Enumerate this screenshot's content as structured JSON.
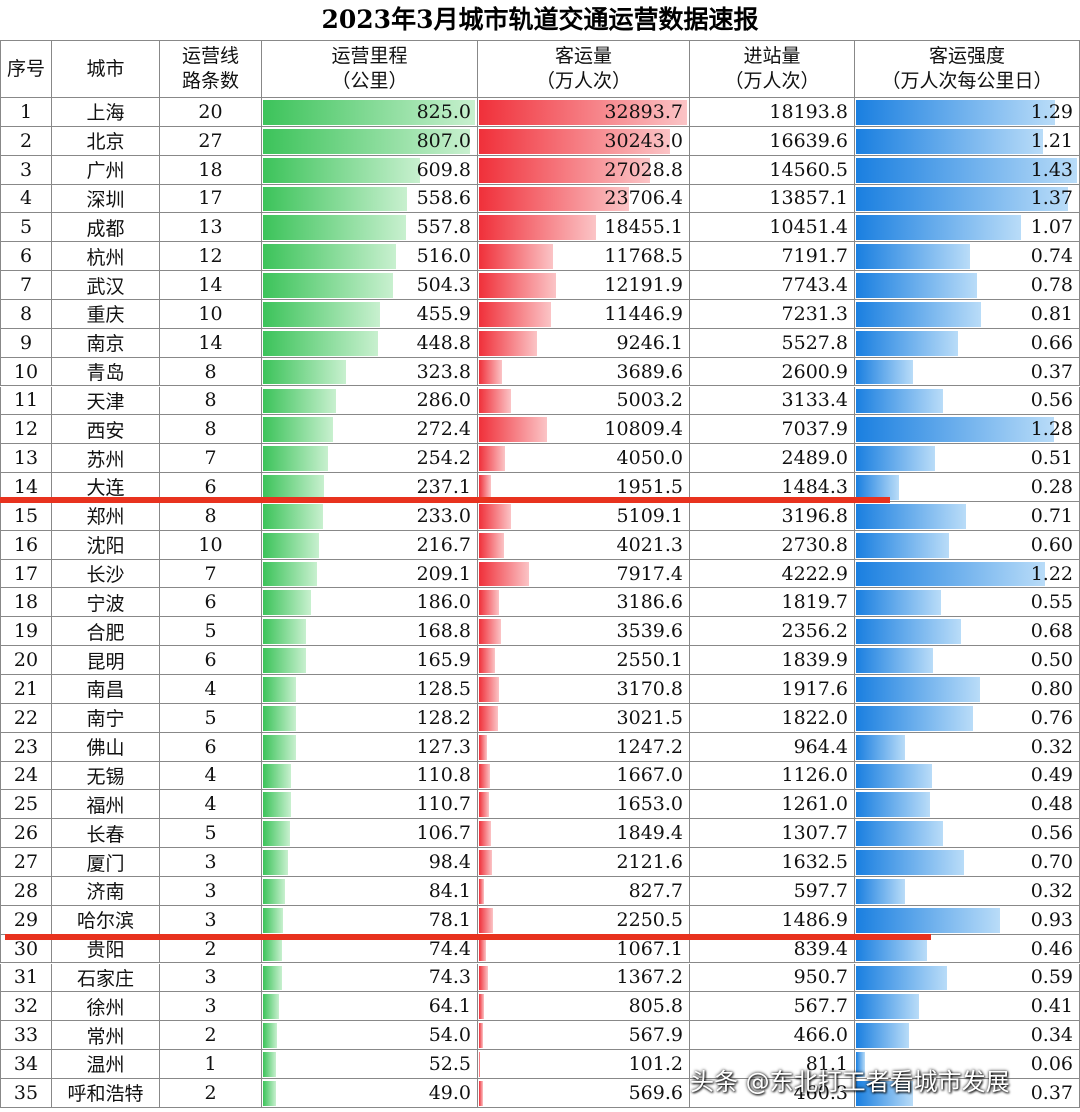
{
  "title": "2023年3月城市轨道交通运营数据速报",
  "table": {
    "header": [
      [
        "序号"
      ],
      [
        "城市"
      ],
      [
        "运营线",
        "路条数"
      ],
      [
        "运营里程",
        "（公里）"
      ],
      [
        "客运量",
        "（万人次）"
      ],
      [
        "进站量",
        "（万人次）"
      ],
      [
        "客运强度",
        "（万人次每公里日）"
      ]
    ],
    "rows": [
      [
        "1",
        "上海",
        "20",
        "825.0",
        "32893.7",
        "18193.8",
        "1.29"
      ],
      [
        "2",
        "北京",
        "27",
        "807.0",
        "30243.0",
        "16639.6",
        "1.21"
      ],
      [
        "3",
        "广州",
        "18",
        "609.8",
        "27028.8",
        "14560.5",
        "1.43"
      ],
      [
        "4",
        "深圳",
        "17",
        "558.6",
        "23706.4",
        "13857.1",
        "1.37"
      ],
      [
        "5",
        "成都",
        "13",
        "557.8",
        "18455.1",
        "10451.4",
        "1.07"
      ],
      [
        "6",
        "杭州",
        "12",
        "516.0",
        "11768.5",
        "7191.7",
        "0.74"
      ],
      [
        "7",
        "武汉",
        "14",
        "504.3",
        "12191.9",
        "7743.4",
        "0.78"
      ],
      [
        "8",
        "重庆",
        "10",
        "455.9",
        "11446.9",
        "7231.3",
        "0.81"
      ],
      [
        "9",
        "南京",
        "14",
        "448.8",
        "9246.1",
        "5527.8",
        "0.66"
      ],
      [
        "10",
        "青岛",
        "8",
        "323.8",
        "3689.6",
        "2600.9",
        "0.37"
      ],
      [
        "11",
        "天津",
        "8",
        "286.0",
        "5003.2",
        "3133.4",
        "0.56"
      ],
      [
        "12",
        "西安",
        "8",
        "272.4",
        "10809.4",
        "7037.9",
        "1.28"
      ],
      [
        "13",
        "苏州",
        "7",
        "254.2",
        "4050.0",
        "2489.0",
        "0.51"
      ],
      [
        "14",
        "大连",
        "6",
        "237.1",
        "1951.5",
        "1484.3",
        "0.28"
      ],
      [
        "15",
        "郑州",
        "8",
        "233.0",
        "5109.1",
        "3196.8",
        "0.71"
      ],
      [
        "16",
        "沈阳",
        "10",
        "216.7",
        "4021.3",
        "2730.8",
        "0.60"
      ],
      [
        "17",
        "长沙",
        "7",
        "209.1",
        "7917.4",
        "4222.9",
        "1.22"
      ],
      [
        "18",
        "宁波",
        "6",
        "186.0",
        "3186.6",
        "1819.7",
        "0.55"
      ],
      [
        "19",
        "合肥",
        "5",
        "168.8",
        "3539.6",
        "2356.2",
        "0.68"
      ],
      [
        "20",
        "昆明",
        "6",
        "165.9",
        "2550.1",
        "1839.9",
        "0.50"
      ],
      [
        "21",
        "南昌",
        "4",
        "128.5",
        "3170.8",
        "1917.6",
        "0.80"
      ],
      [
        "22",
        "南宁",
        "5",
        "128.2",
        "3021.5",
        "1822.0",
        "0.76"
      ],
      [
        "23",
        "佛山",
        "6",
        "127.3",
        "1247.2",
        "964.4",
        "0.32"
      ],
      [
        "24",
        "无锡",
        "4",
        "110.8",
        "1667.0",
        "1126.0",
        "0.49"
      ],
      [
        "25",
        "福州",
        "4",
        "110.7",
        "1653.0",
        "1261.0",
        "0.48"
      ],
      [
        "26",
        "长春",
        "5",
        "106.7",
        "1849.4",
        "1307.7",
        "0.56"
      ],
      [
        "27",
        "厦门",
        "3",
        "98.4",
        "2121.6",
        "1632.5",
        "0.70"
      ],
      [
        "28",
        "济南",
        "3",
        "84.1",
        "827.7",
        "597.7",
        "0.32"
      ],
      [
        "29",
        "哈尔滨",
        "3",
        "78.1",
        "2250.5",
        "1486.9",
        "0.93"
      ],
      [
        "30",
        "贵阳",
        "2",
        "74.4",
        "1067.1",
        "839.4",
        "0.46"
      ],
      [
        "31",
        "石家庄",
        "3",
        "74.3",
        "1367.2",
        "950.7",
        "0.59"
      ],
      [
        "32",
        "徐州",
        "3",
        "64.1",
        "805.8",
        "567.7",
        "0.41"
      ],
      [
        "33",
        "常州",
        "2",
        "54.0",
        "567.9",
        "466.0",
        "0.34"
      ],
      [
        "34",
        "温州",
        "1",
        "52.5",
        "101.2",
        "81.1",
        "0.06"
      ],
      [
        "35",
        "呼和浩特",
        "2",
        "49.0",
        "569.6",
        "460.3",
        "0.37"
      ]
    ]
  },
  "watermark": "头条 @东北打工者看城市发展"
}
